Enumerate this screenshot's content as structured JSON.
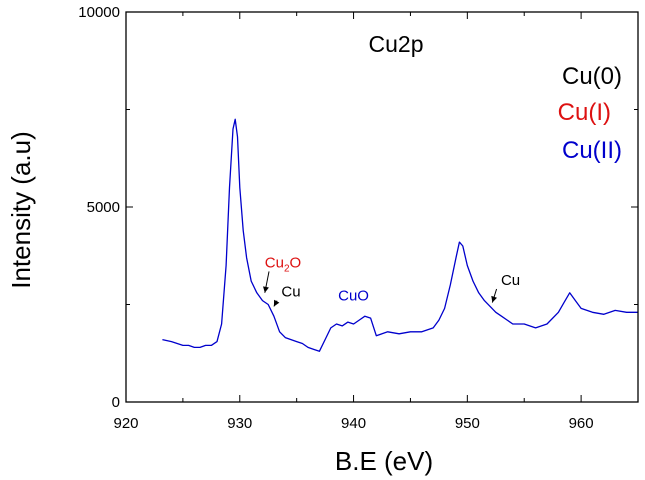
{
  "chart_data": {
    "type": "line",
    "title": "Cu2p",
    "xlabel": "B.E (eV)",
    "ylabel": "Intensity (a.u)",
    "xlim": [
      920,
      965
    ],
    "ylim": [
      0,
      10000
    ],
    "x_ticks": [
      920,
      930,
      940,
      950,
      960
    ],
    "y_ticks": [
      0,
      5000,
      10000
    ],
    "grid": false,
    "series": [
      {
        "color": "#0000cc",
        "x": [
          923.2,
          924.0,
          924.5,
          925.0,
          925.5,
          926.0,
          926.5,
          927.0,
          927.5,
          928.0,
          928.4,
          928.8,
          929.1,
          929.4,
          929.6,
          929.8,
          930.0,
          930.3,
          930.6,
          931.0,
          931.5,
          932.0,
          932.5,
          933.0,
          933.5,
          934.0,
          934.5,
          935.0,
          935.5,
          936.0,
          936.5,
          937.0,
          937.5,
          938.0,
          938.5,
          939.0,
          939.5,
          940.0,
          940.5,
          941.0,
          941.5,
          942.0,
          942.5,
          943.0,
          944.0,
          945.0,
          946.0,
          947.0,
          947.5,
          948.0,
          948.5,
          949.0,
          949.3,
          949.6,
          950.0,
          950.5,
          951.0,
          951.5,
          952.0,
          952.5,
          953.0,
          953.5,
          954.0,
          955.0,
          956.0,
          957.0,
          958.0,
          958.5,
          959.0,
          959.5,
          960.0,
          961.0,
          962.0,
          963.0,
          964.0,
          965.0
        ],
        "y": [
          1600,
          1550,
          1500,
          1450,
          1450,
          1400,
          1400,
          1450,
          1450,
          1550,
          2000,
          3500,
          5500,
          7000,
          7250,
          6800,
          5500,
          4400,
          3700,
          3100,
          2800,
          2600,
          2500,
          2200,
          1800,
          1650,
          1600,
          1550,
          1500,
          1400,
          1350,
          1300,
          1600,
          1900,
          2000,
          1950,
          2050,
          2000,
          2100,
          2200,
          2150,
          1700,
          1750,
          1800,
          1750,
          1800,
          1800,
          1900,
          2100,
          2400,
          3000,
          3700,
          4100,
          4000,
          3500,
          3100,
          2800,
          2600,
          2450,
          2300,
          2200,
          2100,
          2000,
          2000,
          1900,
          2000,
          2300,
          2550,
          2800,
          2600,
          2400,
          2300,
          2250,
          2350,
          2300,
          2300
        ]
      }
    ],
    "legend": {
      "placement": "top-right",
      "entries": [
        {
          "label": "Cu(0)",
          "color": "#000000"
        },
        {
          "label": "Cu(I)",
          "color": "#dd1111"
        },
        {
          "label": "Cu(II)",
          "color": "#0000cc"
        }
      ]
    },
    "annotations": [
      {
        "text": "Cu",
        "sub": "2",
        "text2": "O",
        "color": "#dd1111",
        "x": 933.8,
        "y": 3450,
        "arrow_to": [
          932.2,
          2800
        ]
      },
      {
        "text": "Cu",
        "color": "#000000",
        "x": 934.5,
        "y": 2700,
        "arrow_to": [
          933.0,
          2450
        ]
      },
      {
        "text": "CuO",
        "color": "#0000cc",
        "x": 940.0,
        "y": 2600
      },
      {
        "text": "Cu",
        "color": "#000000",
        "x": 953.8,
        "y": 3000,
        "arrow_to": [
          952.2,
          2550
        ]
      }
    ]
  }
}
